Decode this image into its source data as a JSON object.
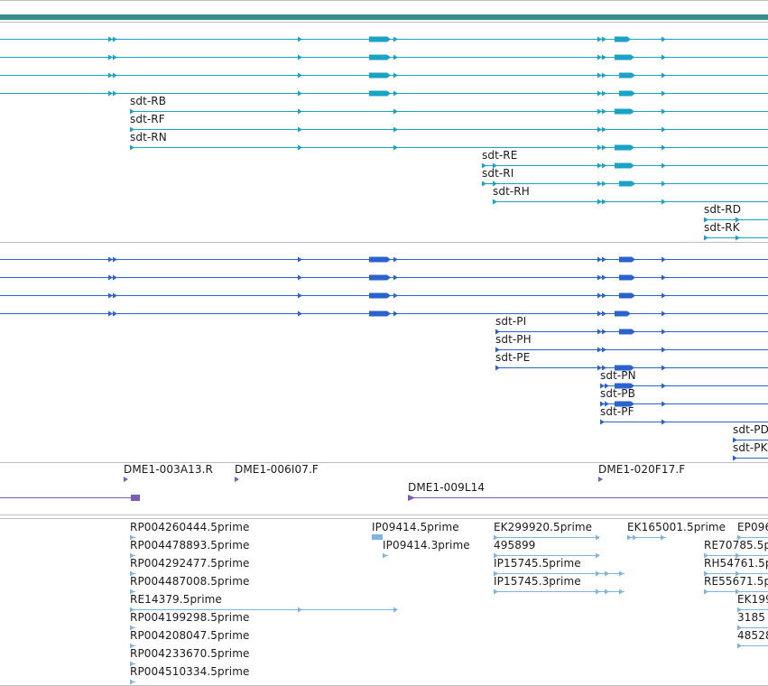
{
  "colors": {
    "gene_bar": "#3a8c8c",
    "transcript": "#1aa3c4",
    "protein": "#2b63cc",
    "clone": "#7c5cb5",
    "est": "#7fb4e0",
    "divider": "#bdbdbd"
  },
  "transcripts": {
    "labels": [
      "sdt-RB",
      "sdt-RF",
      "sdt-RN",
      "sdt-RE",
      "sdt-RI",
      "sdt-RH",
      "sdt-RD",
      "sdt-RK"
    ]
  },
  "proteins": {
    "labels": [
      "sdt-PI",
      "sdt-PH",
      "sdt-PE",
      "sdt-PN",
      "sdt-PB",
      "sdt-PF",
      "sdt-PD",
      "sdt-PK"
    ]
  },
  "clones": {
    "labels": [
      "DME1-003A13.R",
      "DME1-006I07.F",
      "DME1-009L14",
      "DME1-020F17.F"
    ]
  },
  "ests": {
    "labels": [
      "RP004260444.5prime",
      "RP004478893.5prime",
      "RP004292477.5prime",
      "RP004487008.5prime",
      "RE14379.5prime",
      "RP004199298.5prime",
      "RP004208047.5prime",
      "RP004233670.5prime",
      "RP004510334.5prime",
      "IP09414.5prime",
      "IP09414.3prime",
      "EK299920.5prime",
      "495899",
      "IP15745.5prime",
      "IP15745.3prime",
      "EK165001.5prime",
      "EP096",
      "RE70785.5p",
      "RH54761.5p",
      "RE55671.5p",
      "EK199",
      "3185",
      "48528"
    ]
  }
}
